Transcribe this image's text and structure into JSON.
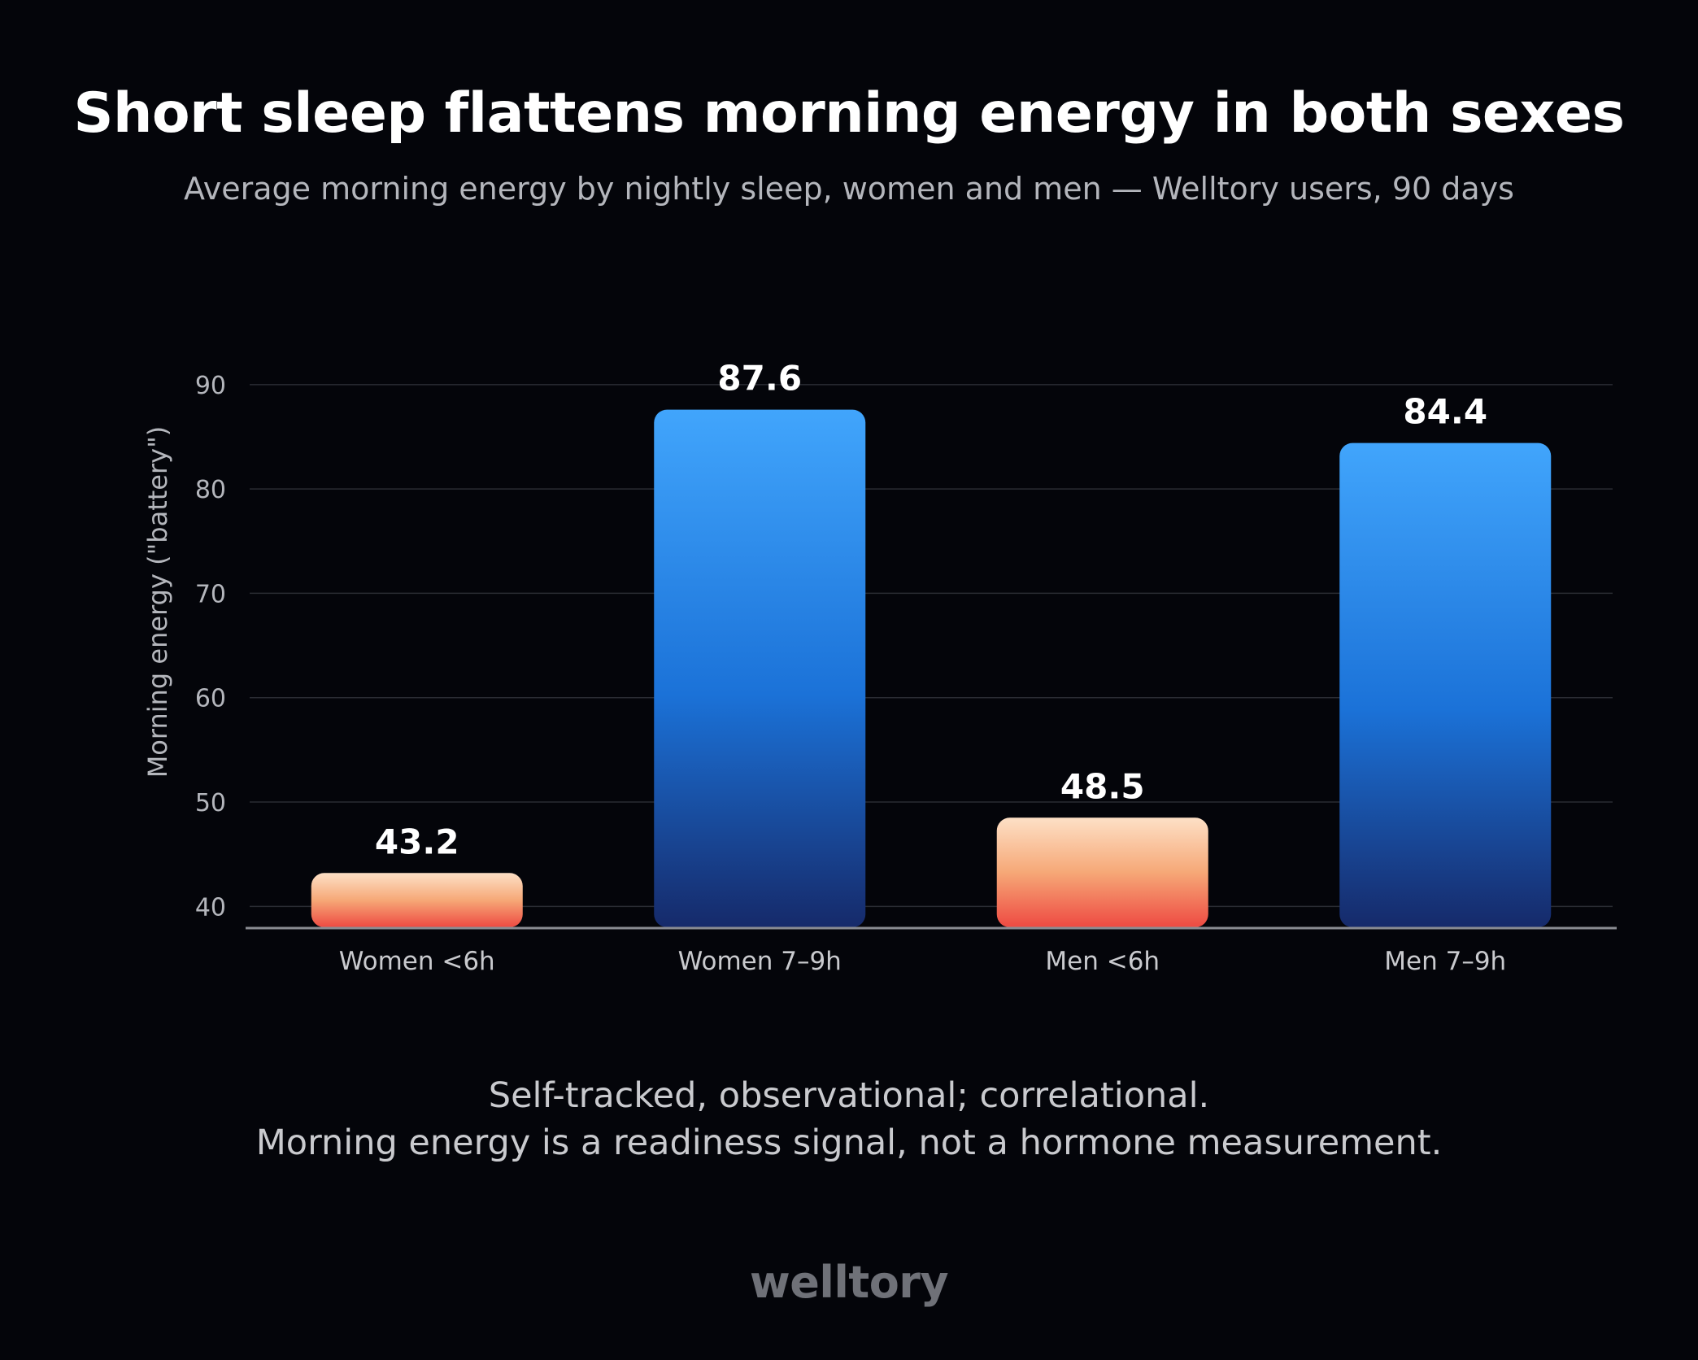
{
  "header": {
    "title": "Short sleep flattens morning energy in both sexes",
    "subtitle": "Average morning energy by nightly sleep, women and men — Welltory users, 90 days"
  },
  "chart_data": {
    "type": "bar",
    "categories": [
      "Women <6h",
      "Women 7–9h",
      "Men <6h",
      "Men 7–9h"
    ],
    "values": [
      43.2,
      87.6,
      48.5,
      84.4
    ],
    "value_labels": [
      "43.2",
      "87.6",
      "48.5",
      "84.4"
    ],
    "bar_styles": [
      "short",
      "normal",
      "short",
      "normal"
    ],
    "ylabel": "Morning energy (\"battery\")",
    "xlabel": "",
    "ylim": [
      38,
      91
    ],
    "yticks": [
      40,
      50,
      60,
      70,
      80,
      90
    ],
    "grid": true,
    "legend": "none"
  },
  "colors": {
    "background": "#04050a",
    "short_top": "#fde0c6",
    "short_mid": "#f6a877",
    "short_bottom": "#ee4a42",
    "normal_top": "#41a5fc",
    "normal_mid": "#1b72d8",
    "normal_bottom": "#162a6a",
    "gridline": "#2a2c33",
    "axis": "#8a8c92",
    "tick_text": "#b4b6bc"
  },
  "footnote": {
    "line1": "Self-tracked, observational; correlational.",
    "line2": "Morning energy is a readiness signal, not a hormone measurement."
  },
  "brand": "welltory"
}
